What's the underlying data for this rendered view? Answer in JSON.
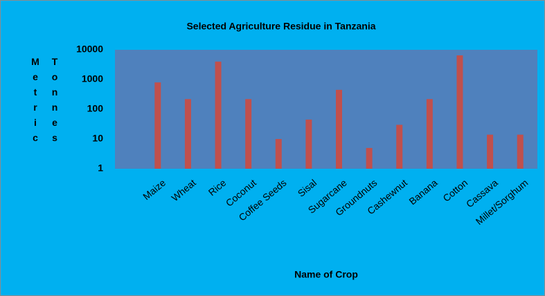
{
  "chart_data": {
    "type": "bar",
    "title": "Selected Agriculture Residue in Tanzania",
    "xlabel": "Name of Crop",
    "ylabel": "Metric Tonnes",
    "categories": [
      "Maize",
      "Wheat",
      "Rice",
      "Coconut",
      "Coffee Seeds",
      "Sisal",
      "Sugarcane",
      "Groundnuts",
      "Cashewnut",
      "Banana",
      "Cotton",
      "Cassava",
      "Millet/Sorghum"
    ],
    "values": [
      800,
      220,
      4000,
      220,
      10,
      45,
      450,
      5,
      30,
      220,
      6500,
      14,
      14
    ],
    "color": "#c0504d",
    "log_scale": true,
    "ylim": [
      1,
      10000
    ],
    "yticks": [
      1,
      10,
      100,
      1000,
      10000
    ],
    "grid": false
  }
}
